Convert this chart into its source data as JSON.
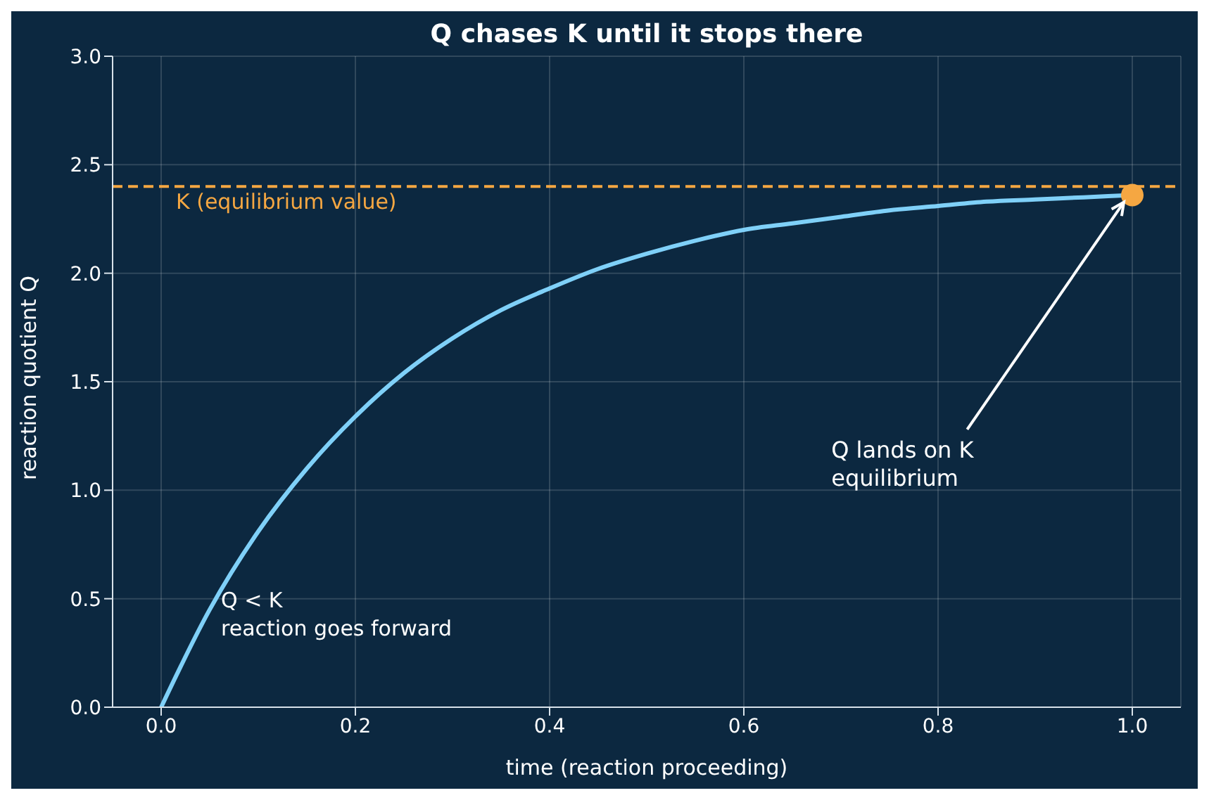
{
  "chart_data": {
    "type": "line",
    "title": "Q chases K until it stops there",
    "xlabel": "time  (reaction proceeding)",
    "ylabel": "reaction quotient  Q",
    "x": [
      0,
      0.05,
      0.1,
      0.15,
      0.2,
      0.25,
      0.3,
      0.35,
      0.4,
      0.45,
      0.5,
      0.55,
      0.6,
      0.65,
      0.7,
      0.75,
      0.8,
      0.85,
      0.9,
      0.95,
      1.0
    ],
    "series": [
      {
        "color": "#7fd0f8",
        "values": [
          0,
          0.45,
          0.81,
          1.1,
          1.34,
          1.54,
          1.7,
          1.83,
          1.93,
          2.02,
          2.09,
          2.15,
          2.2,
          2.23,
          2.26,
          2.29,
          2.31,
          2.33,
          2.34,
          2.35,
          2.36
        ]
      },
      {
        "type": "scatter",
        "color": "#f5a742",
        "x": [
          1.0
        ],
        "values": [
          2.36
        ],
        "marker": "circle"
      }
    ],
    "xlim": [
      -0.05,
      1.05
    ],
    "xticks": [
      {
        "value": 0,
        "label": "0.0"
      },
      0.2,
      0.4,
      0.6,
      0.8,
      {
        "value": 1,
        "label": "1.0"
      }
    ],
    "ylim": [
      0,
      3
    ],
    "yticks": [
      {
        "value": 0,
        "label": "0.0"
      },
      0.5,
      {
        "value": 1,
        "label": "1.0"
      },
      1.5,
      {
        "value": 2,
        "label": "2.0"
      },
      2.5,
      {
        "value": 3,
        "label": "3.0"
      }
    ],
    "grid": true,
    "legend": false,
    "marker": "none",
    "line_style": "solid",
    "ref_lines": [
      {
        "axis": "y",
        "value": 2.4,
        "label": "K  (equilibrium value)",
        "color": "#f5a742",
        "line_style": "dashed"
      }
    ],
    "annotations": [
      {
        "text": "Q lands on K\nequilibrium",
        "x": 1.0,
        "y": 2.36
      },
      "Q < K\nreaction goes forward"
    ]
  }
}
